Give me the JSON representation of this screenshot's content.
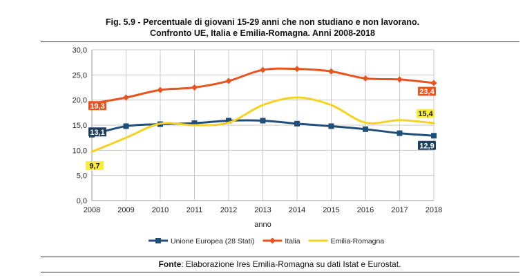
{
  "header": {
    "title_line1": "Fig. 5.9 - Percentuale di giovani 15-29 anni che non studiano e non lavorano.",
    "title_line2": "Confronto UE, Italia e Emilia-Romagna. Anni 2008-2018"
  },
  "footer": {
    "label": "Fonte",
    "text": ": Elaborazione Ires Emilia-Romagna su dati Istat e Eurostat."
  },
  "chart_data": {
    "type": "line",
    "xlabel": "anno",
    "ylabel": "",
    "ylim": [
      0,
      30
    ],
    "y_ticks": [
      "0,0",
      "5,0",
      "10,0",
      "15,0",
      "20,0",
      "25,0",
      "30,0"
    ],
    "x": [
      "2008",
      "2009",
      "2010",
      "2011",
      "2012",
      "2013",
      "2014",
      "2015",
      "2016",
      "2017",
      "2018"
    ],
    "grid": true,
    "legend_position": "bottom",
    "series": [
      {
        "name": "Unione Europea (28 Stati)",
        "color": "#1f4e79",
        "marker": "square",
        "values": [
          13.1,
          14.8,
          15.2,
          15.4,
          15.9,
          15.9,
          15.3,
          14.8,
          14.2,
          13.4,
          12.9
        ],
        "labels": [
          {
            "index": 0,
            "text": "13,1"
          },
          {
            "index": 10,
            "text": "12,9"
          }
        ]
      },
      {
        "name": "Italia",
        "color": "#e8541e",
        "marker": "diamond",
        "values": [
          19.3,
          20.5,
          22.0,
          22.5,
          23.8,
          26.0,
          26.2,
          25.7,
          24.3,
          24.1,
          23.4
        ],
        "labels": [
          {
            "index": 0,
            "text": "19,3"
          },
          {
            "index": 10,
            "text": "23,4"
          }
        ]
      },
      {
        "name": "Emilia-Romagna",
        "color": "#f5d222",
        "marker": "none",
        "values": [
          9.7,
          12.5,
          15.3,
          15.0,
          15.5,
          19.0,
          20.5,
          19.0,
          15.5,
          16.0,
          15.4
        ],
        "labels": [
          {
            "index": 0,
            "text": "9,7"
          },
          {
            "index": 10,
            "text": "15,4"
          }
        ]
      }
    ]
  }
}
